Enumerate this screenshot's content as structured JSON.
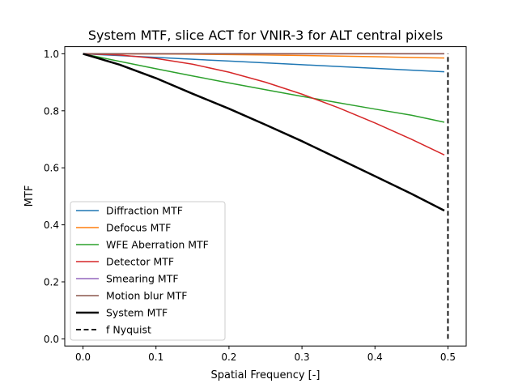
{
  "chart_data": {
    "type": "line",
    "title": "System MTF, slice ACT for VNIR-3 for ALT central pixels",
    "xlabel": "Spatial Frequency [-]",
    "ylabel": "MTF",
    "xlim": [
      -0.025,
      0.525
    ],
    "ylim": [
      -0.025,
      1.025
    ],
    "xticks": [
      "0.0",
      "0.1",
      "0.2",
      "0.3",
      "0.4",
      "0.5"
    ],
    "yticks": [
      "0.0",
      "0.2",
      "0.4",
      "0.6",
      "0.8",
      "1.0"
    ],
    "grid": false,
    "legend_position": "lower-left",
    "x": [
      0.0,
      0.05,
      0.1,
      0.15,
      0.2,
      0.25,
      0.3,
      0.35,
      0.4,
      0.45,
      0.495
    ],
    "series": [
      {
        "name": "Diffraction MTF",
        "color": "#1f77b4",
        "style": "solid",
        "values": [
          1.0,
          0.9936,
          0.9872,
          0.9808,
          0.9744,
          0.9681,
          0.9617,
          0.9553,
          0.949,
          0.9426,
          0.937
        ]
      },
      {
        "name": "Defocus MTF",
        "color": "#ff7f0e",
        "style": "solid",
        "values": [
          1.0,
          0.9998,
          0.9994,
          0.9985,
          0.9973,
          0.9958,
          0.994,
          0.9919,
          0.9896,
          0.987,
          0.985
        ]
      },
      {
        "name": "WFE Aberration MTF",
        "color": "#2ca02c",
        "style": "solid",
        "values": [
          1.0,
          0.9734,
          0.9475,
          0.9223,
          0.8978,
          0.8739,
          0.8507,
          0.8281,
          0.806,
          0.7846,
          0.76
        ]
      },
      {
        "name": "Detector MTF",
        "color": "#d62728",
        "style": "solid",
        "values": [
          1.0,
          0.9959,
          0.9836,
          0.9634,
          0.9355,
          0.9003,
          0.8584,
          0.8106,
          0.7575,
          0.7002,
          0.645
        ]
      },
      {
        "name": "Smearing MTF",
        "color": "#9467bd",
        "style": "solid",
        "values": [
          1.0,
          1.0,
          1.0,
          1.0,
          1.0,
          1.0,
          1.0,
          1.0,
          1.0,
          1.0,
          1.0
        ]
      },
      {
        "name": "Motion blur MTF",
        "color": "#8c564b",
        "style": "solid",
        "values": [
          1.0,
          1.0,
          1.0,
          1.0,
          1.0,
          1.0,
          1.0,
          1.0,
          1.0,
          1.0,
          1.0
        ]
      },
      {
        "name": "System MTF",
        "color": "#000000",
        "style": "solid-bold",
        "values": [
          1.0,
          0.9618,
          0.9144,
          0.86,
          0.8074,
          0.7512,
          0.6934,
          0.6322,
          0.5708,
          0.5089,
          0.45
        ]
      }
    ],
    "nyquist": {
      "name": "f Nyquist",
      "x": 0.5,
      "y": [
        0.0,
        1.0
      ],
      "color": "#000000",
      "style": "dashed"
    }
  }
}
